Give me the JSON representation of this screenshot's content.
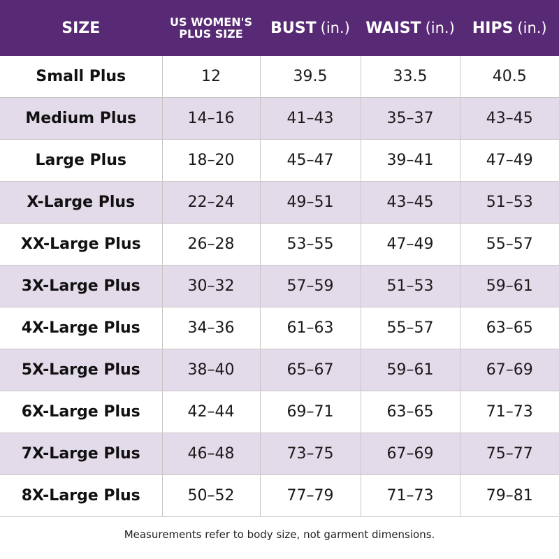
{
  "header": {
    "size": "SIZE",
    "us_plus_line1": "US WOMEN'S",
    "us_plus_line2": "PLUS SIZE",
    "bust": "BUST",
    "waist": "WAIST",
    "hips": "HIPS",
    "unit": "(in.)"
  },
  "rows": [
    {
      "size": "Small Plus",
      "us": "12",
      "bust": "39.5",
      "waist": "33.5",
      "hips": "40.5"
    },
    {
      "size": "Medium Plus",
      "us": "14–16",
      "bust": "41–43",
      "waist": "35–37",
      "hips": "43–45"
    },
    {
      "size": "Large Plus",
      "us": "18–20",
      "bust": "45–47",
      "waist": "39–41",
      "hips": "47–49"
    },
    {
      "size": "X-Large Plus",
      "us": "22–24",
      "bust": "49–51",
      "waist": "43–45",
      "hips": "51–53"
    },
    {
      "size": "XX-Large Plus",
      "us": "26–28",
      "bust": "53–55",
      "waist": "47–49",
      "hips": "55–57"
    },
    {
      "size": "3X-Large Plus",
      "us": "30–32",
      "bust": "57–59",
      "waist": "51–53",
      "hips": "59–61"
    },
    {
      "size": "4X-Large Plus",
      "us": "34–36",
      "bust": "61–63",
      "waist": "55–57",
      "hips": "63–65"
    },
    {
      "size": "5X-Large Plus",
      "us": "38–40",
      "bust": "65–67",
      "waist": "59–61",
      "hips": "67–69"
    },
    {
      "size": "6X-Large Plus",
      "us": "42–44",
      "bust": "69–71",
      "waist": "63–65",
      "hips": "71–73"
    },
    {
      "size": "7X-Large Plus",
      "us": "46–48",
      "bust": "73–75",
      "waist": "67–69",
      "hips": "75–77"
    },
    {
      "size": "8X-Large Plus",
      "us": "50–52",
      "bust": "77–79",
      "waist": "71–73",
      "hips": "79–81"
    }
  ],
  "footnote": "Measurements refer to body size, not garment dimensions.",
  "colors": {
    "header_bg": "#582a76",
    "stripe_bg": "#e4dbea"
  }
}
